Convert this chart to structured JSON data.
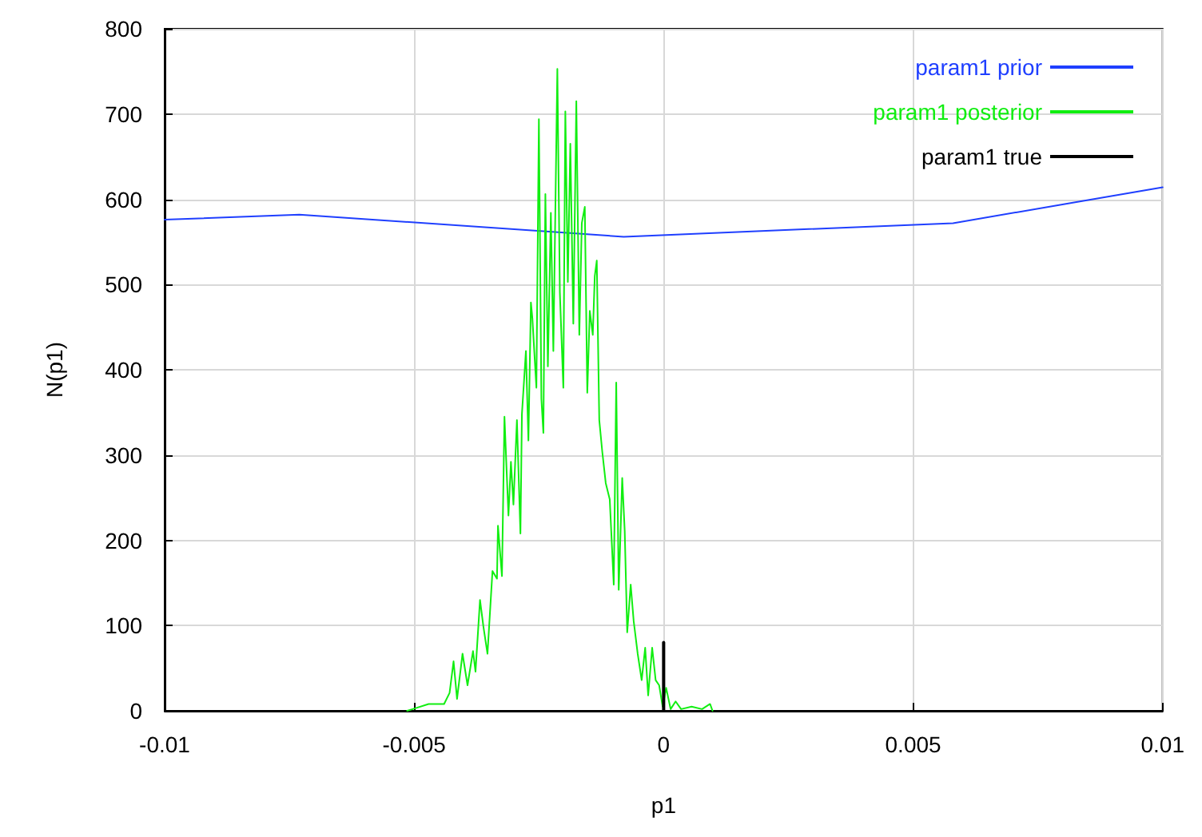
{
  "chart_data": {
    "type": "line",
    "xlabel": "p1",
    "ylabel": "N(p1)",
    "xlim": [
      -0.01,
      0.01
    ],
    "xticks": [
      -0.01,
      -0.005,
      0,
      0.005,
      0.01
    ],
    "ylim": [
      0,
      800
    ],
    "yticks": [
      0,
      100,
      200,
      300,
      400,
      500,
      600,
      700,
      800
    ],
    "grid": true,
    "legend": "top right",
    "marker": "none",
    "line_style": "solid",
    "series": [
      {
        "name": "param1 prior",
        "color": "#1f3fff",
        "x": [
          -0.01,
          -0.0073,
          -0.0008,
          0.0058,
          0.01
        ],
        "values": [
          576,
          582,
          556,
          572,
          614
        ]
      },
      {
        "name": "param1 posterior",
        "color": "#11ee11",
        "x": [
          -0.00514,
          -0.00503,
          -0.00471,
          -0.0044,
          -0.00429,
          -0.00421,
          -0.00414,
          -0.00403,
          -0.00393,
          -0.00382,
          -0.00377,
          -0.00368,
          -0.00361,
          -0.00353,
          -0.00343,
          -0.00334,
          -0.00332,
          -0.00324,
          -0.00319,
          -0.00311,
          -0.00306,
          -0.00301,
          -0.00294,
          -0.00287,
          -0.00284,
          -0.00276,
          -0.00271,
          -0.00266,
          -0.00263,
          -0.00255,
          -0.0025,
          -0.00245,
          -0.00241,
          -0.00237,
          -0.00232,
          -0.00226,
          -0.00221,
          -0.00213,
          -0.00208,
          -0.00201,
          -0.00197,
          -0.00192,
          -0.00187,
          -0.00181,
          -0.00175,
          -0.00169,
          -0.00164,
          -0.00158,
          -0.00153,
          -0.00148,
          -0.00142,
          -0.00138,
          -0.00134,
          -0.00129,
          -0.00123,
          -0.00116,
          -0.00108,
          -0.001,
          -0.00095,
          -0.0009,
          -0.00083,
          -0.00078,
          -0.00073,
          -0.00066,
          -0.0006,
          -0.00052,
          -0.00044,
          -0.00037,
          -0.00031,
          -0.00023,
          -0.00016,
          -9e-05,
          -2e-05,
          5e-05,
          0.00014,
          0.00024,
          0.00035,
          0.00056,
          0.00077,
          0.00093,
          0.00098
        ],
        "values": [
          0,
          2,
          8,
          8,
          21,
          58,
          14,
          67,
          30,
          70,
          46,
          130,
          98,
          67,
          164,
          155,
          217,
          158,
          345,
          229,
          292,
          242,
          341,
          208,
          348,
          422,
          317,
          479,
          460,
          379,
          694,
          366,
          326,
          606,
          404,
          584,
          422,
          753,
          491,
          379,
          703,
          503,
          665,
          454,
          715,
          441,
          572,
          591,
          373,
          469,
          441,
          510,
          528,
          341,
          304,
          267,
          248,
          148,
          385,
          142,
          273,
          211,
          92,
          148,
          105,
          67,
          36,
          74,
          18,
          74,
          36,
          30,
          5,
          27,
          2,
          11,
          2,
          5,
          2,
          8,
          0
        ]
      },
      {
        "name": "param1 true",
        "color": "#000000",
        "x": [
          0,
          0
        ],
        "values": [
          0,
          80
        ]
      }
    ]
  }
}
